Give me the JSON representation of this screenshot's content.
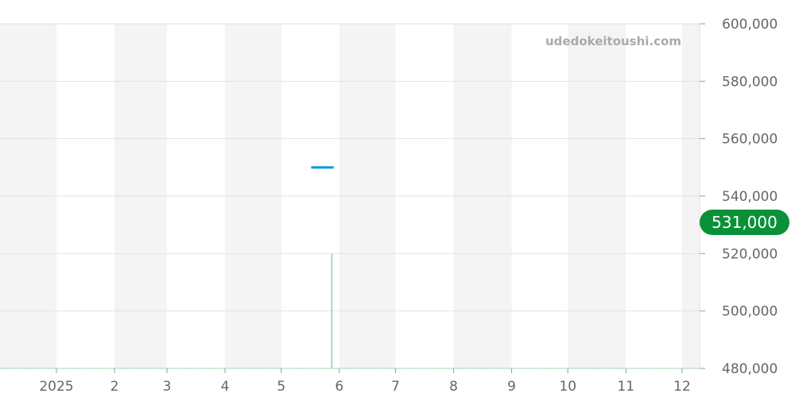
{
  "watermark": "udedokeitoushi.com",
  "current_price_label": "531,000",
  "colors": {
    "band": "#f4f4f4",
    "grid": "#e2e2e2",
    "price_line": "#0099e0",
    "volume": "#8fd19e",
    "badge": "#0a9138",
    "axis_text": "#666666"
  },
  "chart_data": {
    "type": "line",
    "ylim": [
      480000,
      600000
    ],
    "y_ticks": [
      600000,
      580000,
      560000,
      540000,
      520000,
      500000,
      480000
    ],
    "y_tick_labels": [
      "600,000",
      "580,000",
      "560,000",
      "540,000",
      "520,000",
      "500,000",
      "480,000"
    ],
    "x_range": [
      "2024-12-01",
      "2025-12-10"
    ],
    "x_ticks": [
      {
        "date": "2025-01-01",
        "label": "2025"
      },
      {
        "date": "2025-02-01",
        "label": "2"
      },
      {
        "date": "2025-03-01",
        "label": "3"
      },
      {
        "date": "2025-04-01",
        "label": "4"
      },
      {
        "date": "2025-05-01",
        "label": "5"
      },
      {
        "date": "2025-06-01",
        "label": "6"
      },
      {
        "date": "2025-07-01",
        "label": "7"
      },
      {
        "date": "2025-08-01",
        "label": "8"
      },
      {
        "date": "2025-09-01",
        "label": "9"
      },
      {
        "date": "2025-10-01",
        "label": "10"
      },
      {
        "date": "2025-11-01",
        "label": "11"
      },
      {
        "date": "2025-12-01",
        "label": "12"
      }
    ],
    "grid": true,
    "alternating_month_bands": true,
    "series": [
      {
        "points": [
          {
            "x": "2025-05-17",
            "y": 550000
          },
          {
            "x": "2025-05-29",
            "y": 550000
          }
        ]
      }
    ],
    "volume_marks": [
      {
        "x": "2025-05-28",
        "top": 520000
      }
    ],
    "current_value": 531000
  }
}
